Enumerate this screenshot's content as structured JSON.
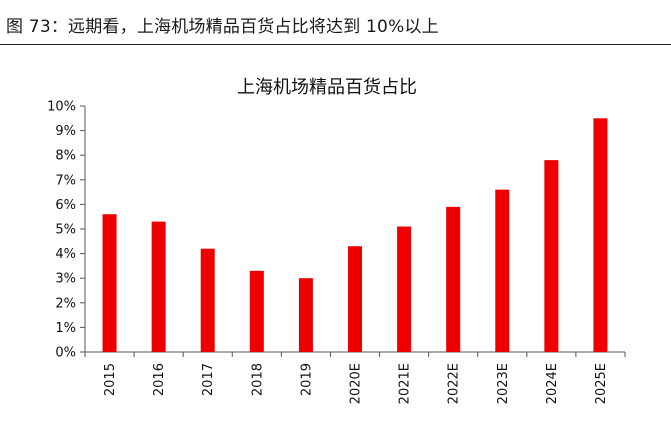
{
  "figure": {
    "caption": "图 73：远期看，上海机场精品百货占比将达到 10%以上"
  },
  "watermark": "",
  "colors": {
    "bar": "#ee0000",
    "axis": "#555555",
    "text": "#111111"
  },
  "chart_data": {
    "type": "bar",
    "title": "上海机场精品百货占比",
    "xlabel": "",
    "ylabel": "",
    "categories": [
      "2015",
      "2016",
      "2017",
      "2018",
      "2019",
      "2020E",
      "2021E",
      "2022E",
      "2023E",
      "2024E",
      "2025E"
    ],
    "values": [
      0.056,
      0.053,
      0.042,
      0.033,
      0.03,
      0.043,
      0.051,
      0.059,
      0.066,
      0.078,
      0.095
    ],
    "ylim": [
      0,
      0.1
    ],
    "yticks": [
      0,
      0.01,
      0.02,
      0.03,
      0.04,
      0.05,
      0.06,
      0.07,
      0.08,
      0.09,
      0.1
    ],
    "ytick_labels": [
      "0%",
      "1%",
      "2%",
      "3%",
      "4%",
      "5%",
      "6%",
      "7%",
      "8%",
      "9%",
      "10%"
    ],
    "grid": false,
    "legend": false
  }
}
